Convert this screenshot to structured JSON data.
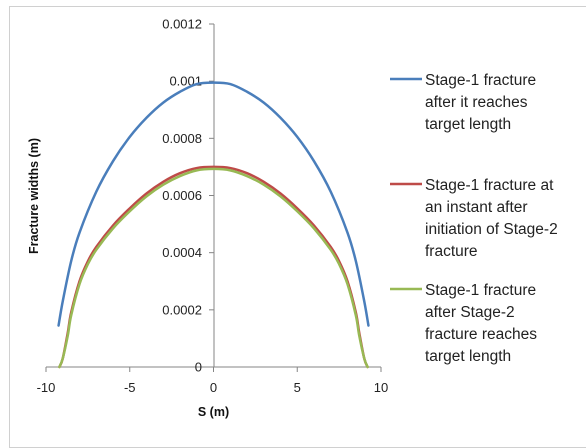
{
  "chart_data": {
    "type": "line",
    "xlabel": "S (m)",
    "ylabel": "Fracture widths (m)",
    "xlim": [
      -10,
      10
    ],
    "ylim": [
      0,
      0.0012
    ],
    "x_ticks": [
      -10,
      -5,
      0,
      5,
      10
    ],
    "x_tick_labels": [
      "-10",
      "-5",
      "0",
      "5",
      "10"
    ],
    "y_ticks": [
      0,
      0.0002,
      0.0004,
      0.0006,
      0.0008,
      0.001,
      0.0012
    ],
    "y_tick_labels": [
      "0",
      "0.0002",
      "0.0004",
      "0.0006",
      "0.0008",
      "0.001",
      "0.0012"
    ],
    "grid": false,
    "legend_position": "right",
    "series": [
      {
        "name": "Stage-1 fracture after it reaches target length",
        "legend_lines": [
          "Stage-1 fracture",
          "after it reaches",
          "target length"
        ],
        "color": "#4a7ebb",
        "x": [
          -9.25,
          -9.0,
          -8.5,
          -8.0,
          -7.0,
          -6.0,
          -5.0,
          -4.0,
          -3.0,
          -2.0,
          -1.0,
          0,
          1.0,
          2.0,
          3.0,
          4.0,
          5.0,
          6.0,
          7.0,
          8.0,
          8.5,
          9.0,
          9.25
        ],
        "y": [
          0.000145,
          0.00023,
          0.00037,
          0.00047,
          0.000613,
          0.00072,
          0.000805,
          0.000872,
          0.000925,
          0.000963,
          0.00099,
          0.000995,
          0.00099,
          0.000963,
          0.000925,
          0.000872,
          0.000805,
          0.00072,
          0.000613,
          0.00047,
          0.00037,
          0.00023,
          0.000145
        ]
      },
      {
        "name": "Stage-1 fracture at an instant after initiation of Stage-2 fracture",
        "legend_lines": [
          "Stage-1 fracture at",
          "an instant after",
          "initiation of Stage-2",
          "fracture"
        ],
        "color": "#be4b48",
        "x": [
          -9.2,
          -9.0,
          -8.7,
          -8.5,
          -8.0,
          -7.5,
          -7.0,
          -6.0,
          -5.0,
          -4.0,
          -3.0,
          -2.0,
          -1.0,
          0,
          1.0,
          2.0,
          3.0,
          4.0,
          5.0,
          6.0,
          7.0,
          7.5,
          8.0,
          8.5,
          8.7,
          9.0,
          9.2
        ],
        "y": [
          0.0,
          3e-05,
          0.00012,
          0.00019,
          0.0003,
          0.00037,
          0.00042,
          0.000495,
          0.000555,
          0.000607,
          0.000648,
          0.000678,
          0.000696,
          0.0007,
          0.000696,
          0.000678,
          0.000648,
          0.000607,
          0.000555,
          0.000495,
          0.00042,
          0.00037,
          0.0003,
          0.00019,
          0.00012,
          3e-05,
          0.0
        ]
      },
      {
        "name": "Stage-1 fracture after Stage-2 fracture reaches target length",
        "legend_lines": [
          "Stage-1 fracture",
          "after Stage-2",
          "fracture reaches",
          "target length"
        ],
        "color": "#98b954",
        "x": [
          -9.2,
          -9.0,
          -8.7,
          -8.5,
          -8.0,
          -7.5,
          -7.0,
          -6.0,
          -5.0,
          -4.0,
          -3.0,
          -2.0,
          -1.0,
          0,
          1.0,
          2.0,
          3.0,
          4.0,
          5.0,
          6.0,
          7.0,
          7.5,
          8.0,
          8.5,
          8.7,
          9.0,
          9.2
        ],
        "y": [
          0.0,
          3e-05,
          0.00011,
          0.00018,
          0.00029,
          0.00036,
          0.00041,
          0.000485,
          0.000545,
          0.000597,
          0.000638,
          0.000668,
          0.000688,
          0.000693,
          0.000688,
          0.000668,
          0.000638,
          0.000597,
          0.000545,
          0.000485,
          0.00041,
          0.00036,
          0.00029,
          0.00018,
          0.00011,
          3e-05,
          0.0
        ]
      }
    ]
  }
}
